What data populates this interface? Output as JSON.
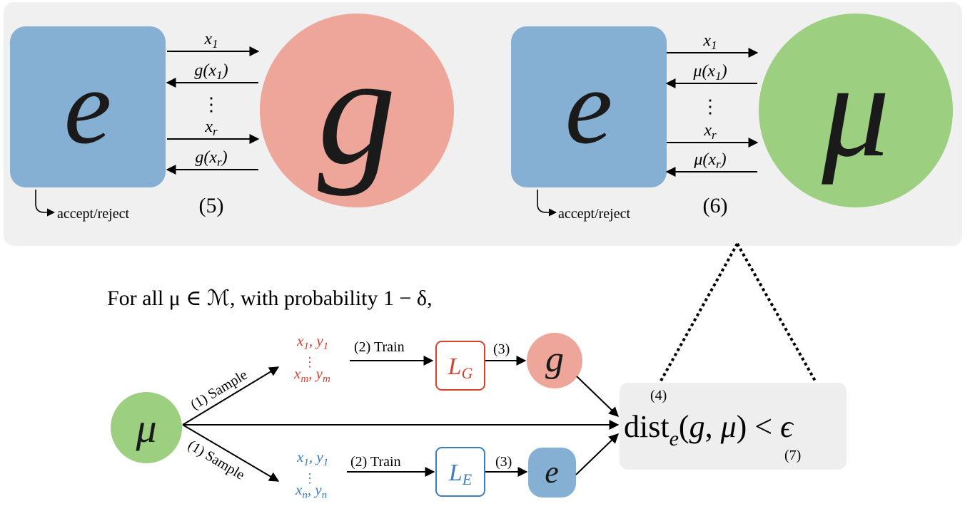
{
  "top_left": {
    "box_letter": "e",
    "circle_letter": "g",
    "arrow_labels": [
      "x_1",
      "g(x_1)",
      "x_r",
      "g(x_r)"
    ],
    "dots": "⋮",
    "decision_label": "accept/reject",
    "step_label": "(5)"
  },
  "top_right": {
    "box_letter": "e",
    "circle_letter": "μ",
    "arrow_labels": [
      "x_1",
      "μ(x_1)",
      "x_r",
      "μ(x_r)"
    ],
    "dots": "⋮",
    "decision_label": "accept/reject",
    "step_label": "(6)"
  },
  "statement": "For all μ ∈ ℳ, with probability 1 − δ,",
  "source_node": "μ",
  "sample_label_top": "(1) Sample",
  "sample_label_bottom": "(1) Sample",
  "red_samples": {
    "first": "x_1, y_1",
    "last": "x_m, y_m",
    "dots": "⋮"
  },
  "blue_samples": {
    "first": "x_1, y_1",
    "last": "x_n, y_n",
    "dots": "⋮"
  },
  "train_label_top": "(2) Train",
  "train_label_bottom": "(2) Train",
  "learner_g": "L_G",
  "learner_e": "L_E",
  "step3_top": "(3)",
  "step3_bottom": "(3)",
  "node_g": "g",
  "node_e": "e",
  "result": {
    "step4": "(4)",
    "expression": "dist_e(g, μ) < ϵ",
    "step7": "(7)"
  },
  "colors": {
    "panel_bg": "#f0f0f0",
    "box_blue": "#85b0d3",
    "circle_red": "#eea69b",
    "circle_green": "#9ccf80",
    "red_text": "#d9412f",
    "blue_text": "#3a7ebf"
  }
}
